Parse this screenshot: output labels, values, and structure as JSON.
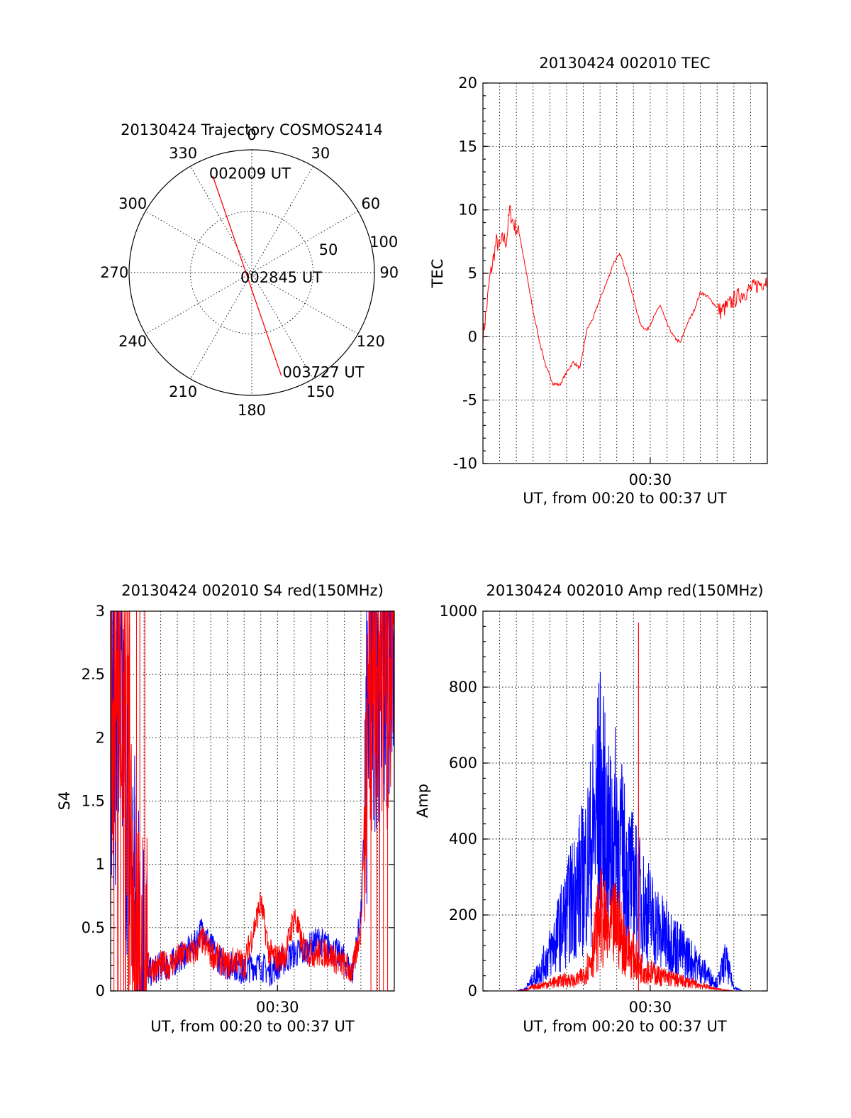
{
  "chart_data": [
    {
      "type": "polar",
      "title": "20130424 Trajectory COSMOS2414",
      "angle_labels": [
        "0",
        "30",
        "60",
        "90",
        "120",
        "150",
        "180",
        "210",
        "240",
        "270",
        "300",
        "330"
      ],
      "radius_labels": [
        "50",
        "100"
      ],
      "series": [
        {
          "color": "#ff0000",
          "points": [
            {
              "az": 338,
              "r": 85
            },
            {
              "az": 164,
              "r": 87
            }
          ]
        }
      ],
      "annotations": [
        "002009 UT",
        "002845 UT",
        "003727 UT"
      ]
    },
    {
      "type": "line",
      "title": "20130424 002010 TEC",
      "xlabel": "UT, from 00:20 to 00:37 UT",
      "ylabel": "TEC",
      "ylim": [
        -10,
        20
      ],
      "yticks": [
        "-10",
        "-5",
        "0",
        "5",
        "10",
        "15",
        "20"
      ],
      "xticks": [
        "00:30"
      ],
      "series": [
        {
          "color": "#ff0000",
          "x": [
            0.0,
            0.2,
            0.4,
            0.6,
            0.8,
            1.0,
            1.2,
            1.4,
            1.6,
            1.8,
            2.2,
            2.6,
            3.0,
            3.4,
            3.8,
            4.2,
            4.6,
            5.0,
            5.4,
            5.8,
            6.2,
            6.6,
            7.0,
            7.4,
            7.8,
            8.2,
            8.6,
            9.0,
            9.4,
            9.8,
            10.2,
            10.6,
            11.0,
            11.4,
            11.8,
            12.2,
            12.6,
            13.0,
            13.4,
            13.8,
            14.2,
            14.6,
            15.0,
            15.4,
            15.8,
            16.2,
            16.6,
            17.0
          ],
          "y": [
            0,
            2,
            4.5,
            6,
            7.5,
            7,
            7.8,
            7.5,
            10,
            9,
            8,
            5,
            2,
            -0.5,
            -2.5,
            -3.7,
            -3.8,
            -2.8,
            -2,
            -2.5,
            0.5,
            1.5,
            3,
            4.3,
            5.8,
            6.5,
            5,
            3,
            1,
            0.5,
            1.5,
            2.5,
            1,
            0,
            -0.5,
            1,
            2,
            3.5,
            3.2,
            2.6,
            2,
            2.4,
            2.9,
            3.3,
            3.6,
            3.9,
            4.2,
            4.5
          ]
        }
      ]
    },
    {
      "type": "line",
      "title": "20130424 002010 S4 red(150MHz)",
      "xlabel": "UT, from 00:20 to 00:37 UT",
      "ylabel": "S4",
      "ylim": [
        0,
        3
      ],
      "yticks": [
        "0",
        "0.5",
        "1",
        "1.5",
        "2",
        "2.5",
        "3"
      ],
      "xticks": [
        "00:30"
      ],
      "series": [
        {
          "color": "#0000ff",
          "x": [
            0.0,
            0.5,
            1.0,
            1.5,
            2.0,
            2.5,
            3.0,
            3.5,
            4.0,
            4.5,
            5.0,
            5.5,
            6.0,
            6.5,
            7.0,
            7.5,
            8.0,
            8.5,
            9.0,
            9.5,
            10.0,
            10.5,
            11.0,
            11.5,
            12.0,
            12.5,
            13.0,
            13.5,
            14.0,
            14.5,
            15.0,
            15.5,
            16.0,
            16.5,
            17.0
          ],
          "y": [
            2.2,
            2.1,
            1.6,
            0.5,
            0.15,
            0.15,
            0.2,
            0.2,
            0.25,
            0.3,
            0.35,
            0.5,
            0.35,
            0.25,
            0.2,
            0.2,
            0.15,
            0.2,
            0.2,
            0.15,
            0.2,
            0.25,
            0.3,
            0.3,
            0.35,
            0.4,
            0.35,
            0.3,
            0.25,
            0.15,
            0.6,
            2.4,
            2.7,
            2.6,
            2.5
          ]
        },
        {
          "color": "#ff0000",
          "x": [
            0.0,
            0.5,
            1.0,
            1.5,
            2.0,
            2.5,
            3.0,
            3.5,
            4.0,
            4.5,
            5.0,
            5.5,
            6.0,
            6.5,
            7.0,
            7.5,
            8.0,
            8.5,
            9.0,
            9.5,
            10.0,
            10.5,
            11.0,
            11.5,
            12.0,
            12.5,
            13.0,
            13.5,
            14.0,
            14.5,
            15.0,
            15.5,
            16.0,
            16.5,
            17.0
          ],
          "y": [
            2.5,
            2.4,
            1.9,
            0.35,
            0.2,
            0.18,
            0.2,
            0.2,
            0.25,
            0.3,
            0.3,
            0.4,
            0.3,
            0.25,
            0.2,
            0.25,
            0.2,
            0.45,
            0.7,
            0.3,
            0.25,
            0.3,
            0.6,
            0.35,
            0.3,
            0.3,
            0.3,
            0.25,
            0.2,
            0.15,
            0.5,
            2.6,
            2.8,
            2.7,
            2.4
          ]
        }
      ]
    },
    {
      "type": "line",
      "title": "20130424 002010 Amp red(150MHz)",
      "xlabel": "UT, from 00:20 to 00:37 UT",
      "ylabel": "Amp",
      "ylim": [
        0,
        1000
      ],
      "yticks": [
        "0",
        "200",
        "400",
        "600",
        "800",
        "1000"
      ],
      "xticks": [
        "00:30"
      ],
      "series": [
        {
          "color": "#0000ff",
          "x": [
            0.0,
            1.0,
            2.0,
            2.5,
            3.0,
            3.5,
            4.0,
            4.5,
            5.0,
            5.5,
            6.0,
            6.5,
            7.0,
            7.5,
            8.0,
            8.5,
            9.0,
            9.5,
            10.0,
            10.5,
            11.0,
            11.5,
            12.0,
            12.5,
            13.0,
            13.5,
            14.0,
            14.5,
            15.0,
            15.5,
            16.0,
            17.0
          ],
          "y": [
            0,
            0,
            0,
            5,
            30,
            60,
            100,
            150,
            200,
            260,
            300,
            380,
            520,
            380,
            420,
            320,
            280,
            230,
            200,
            160,
            140,
            120,
            100,
            80,
            60,
            40,
            20,
            80,
            10,
            0,
            0,
            0
          ]
        },
        {
          "color": "#ff0000",
          "x": [
            0.0,
            1.0,
            2.0,
            2.5,
            3.0,
            3.5,
            4.0,
            4.5,
            5.0,
            5.5,
            6.0,
            6.5,
            7.0,
            7.5,
            8.0,
            8.5,
            9.0,
            9.5,
            10.0,
            10.5,
            11.0,
            11.5,
            12.0,
            12.5,
            13.0,
            13.5,
            14.0,
            14.5,
            15.0,
            15.5,
            16.0,
            17.0
          ],
          "y": [
            0,
            0,
            0,
            2,
            10,
            15,
            20,
            25,
            30,
            25,
            40,
            90,
            200,
            150,
            180,
            120,
            90,
            60,
            50,
            40,
            35,
            30,
            25,
            20,
            15,
            10,
            5,
            2,
            0,
            0,
            0,
            0
          ]
        }
      ],
      "spike": {
        "x": 9.3,
        "y": 970
      }
    }
  ]
}
